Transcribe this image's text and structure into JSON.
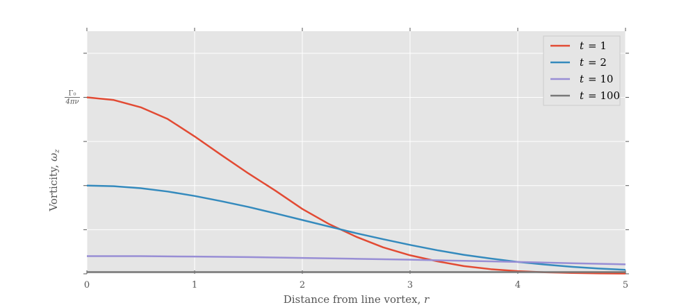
{
  "chart_data": {
    "type": "line",
    "title": "",
    "xlabel": "Distance from line vortex, r",
    "xlabel_text": "Distance from line vortex, ",
    "xlabel_var": "r",
    "ylabel": "Vorticity, ω_z",
    "ylabel_text": "Vorticity, ",
    "ylabel_var": "ω",
    "ylabel_sub": "z",
    "xlim": [
      0,
      5
    ],
    "ylim": [
      0,
      1.1
    ],
    "xticks": [
      0,
      1,
      2,
      3,
      4,
      5
    ],
    "xtick_labels": [
      "0",
      "1",
      "2",
      "3",
      "4",
      "5"
    ],
    "yticks": [
      0,
      0.2,
      0.4,
      0.6,
      0.8,
      1.0
    ],
    "ytick_label": {
      "value": 0.8,
      "numerator": "Γ₀",
      "denominator": "4πν"
    },
    "grid": true,
    "legend_position": "top-right",
    "series": [
      {
        "name": "t = 1",
        "name_var": "t",
        "name_value": "= 1",
        "color": "#E24A33",
        "t": 1,
        "x": [
          0,
          0.25,
          0.5,
          0.75,
          1.0,
          1.25,
          1.5,
          1.75,
          2.0,
          2.25,
          2.5,
          2.75,
          3.0,
          3.25,
          3.5,
          3.75,
          4.0,
          4.25,
          4.5,
          4.75,
          5.0
        ],
        "y": [
          0.8,
          0.788,
          0.755,
          0.702,
          0.623,
          0.538,
          0.455,
          0.377,
          0.294,
          0.225,
          0.168,
          0.12,
          0.084,
          0.057,
          0.035,
          0.021,
          0.012,
          0.007,
          0.004,
          0.002,
          0.001
        ]
      },
      {
        "name": "t = 2",
        "name_var": "t",
        "name_value": "= 2",
        "color": "#348ABD",
        "t": 2,
        "x": [
          0,
          0.25,
          0.5,
          0.75,
          1.0,
          1.25,
          1.5,
          1.75,
          2.0,
          2.25,
          2.5,
          2.75,
          3.0,
          3.25,
          3.5,
          3.75,
          4.0,
          4.25,
          4.5,
          4.75,
          5.0
        ],
        "y": [
          0.4,
          0.397,
          0.388,
          0.373,
          0.353,
          0.329,
          0.303,
          0.274,
          0.244,
          0.214,
          0.184,
          0.157,
          0.131,
          0.107,
          0.086,
          0.069,
          0.054,
          0.042,
          0.032,
          0.024,
          0.018
        ]
      },
      {
        "name": "t = 10",
        "name_var": "t",
        "name_value": "= 10",
        "color": "#988ED5",
        "t": 10,
        "x": [
          0,
          0.5,
          1.0,
          1.5,
          2.0,
          2.5,
          3.0,
          3.5,
          4.0,
          4.5,
          5.0
        ],
        "y": [
          0.08,
          0.08,
          0.078,
          0.076,
          0.072,
          0.068,
          0.064,
          0.059,
          0.054,
          0.048,
          0.043
        ]
      },
      {
        "name": "t = 100",
        "name_var": "t",
        "name_value": "= 100",
        "color": "#777777",
        "t": 100,
        "x": [
          0,
          1,
          2,
          3,
          4,
          5
        ],
        "y": [
          0.008,
          0.008,
          0.008,
          0.008,
          0.008,
          0.008
        ]
      }
    ]
  }
}
